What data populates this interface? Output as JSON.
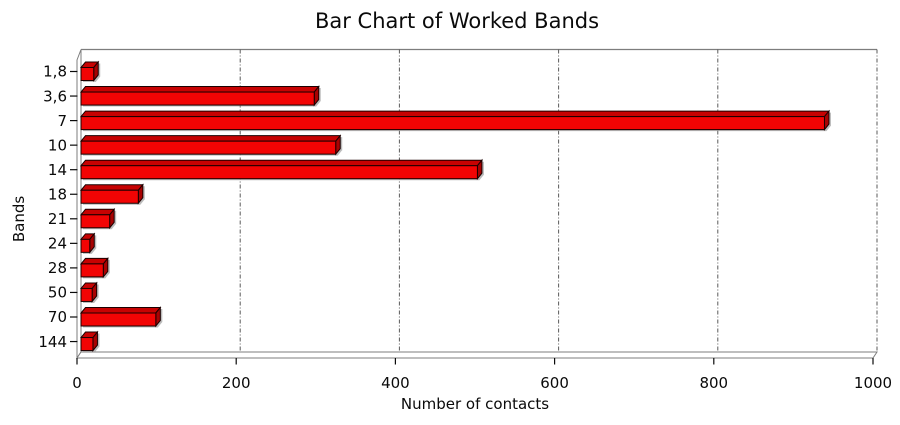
{
  "chart_data": {
    "type": "bar",
    "orientation": "horizontal",
    "style": "3d-horizontal-bars",
    "title": "Bar Chart of Worked Bands",
    "xlabel": "Number of contacts",
    "ylabel": "Bands",
    "categories": [
      "1,8",
      "3,6",
      "7",
      "10",
      "14",
      "18",
      "21",
      "24",
      "28",
      "50",
      "70",
      "144"
    ],
    "values": [
      16,
      293,
      934,
      320,
      498,
      72,
      36,
      11,
      28,
      14,
      94,
      15
    ],
    "xlim": [
      0,
      1000
    ],
    "xticks": [
      0,
      200,
      400,
      600,
      800,
      1000
    ],
    "grid": "vertical-dash-dot",
    "legend": "none",
    "colors": {
      "bar_front": "#f20404",
      "bar_top": "#c70202",
      "bar_side": "#a80202",
      "bar_outline": "#1c0000",
      "bar_shadow": "#a6a6a6",
      "frame": "#7d7d7d",
      "gridline": "#5a5a5a",
      "text": "#0a0a0a"
    }
  }
}
